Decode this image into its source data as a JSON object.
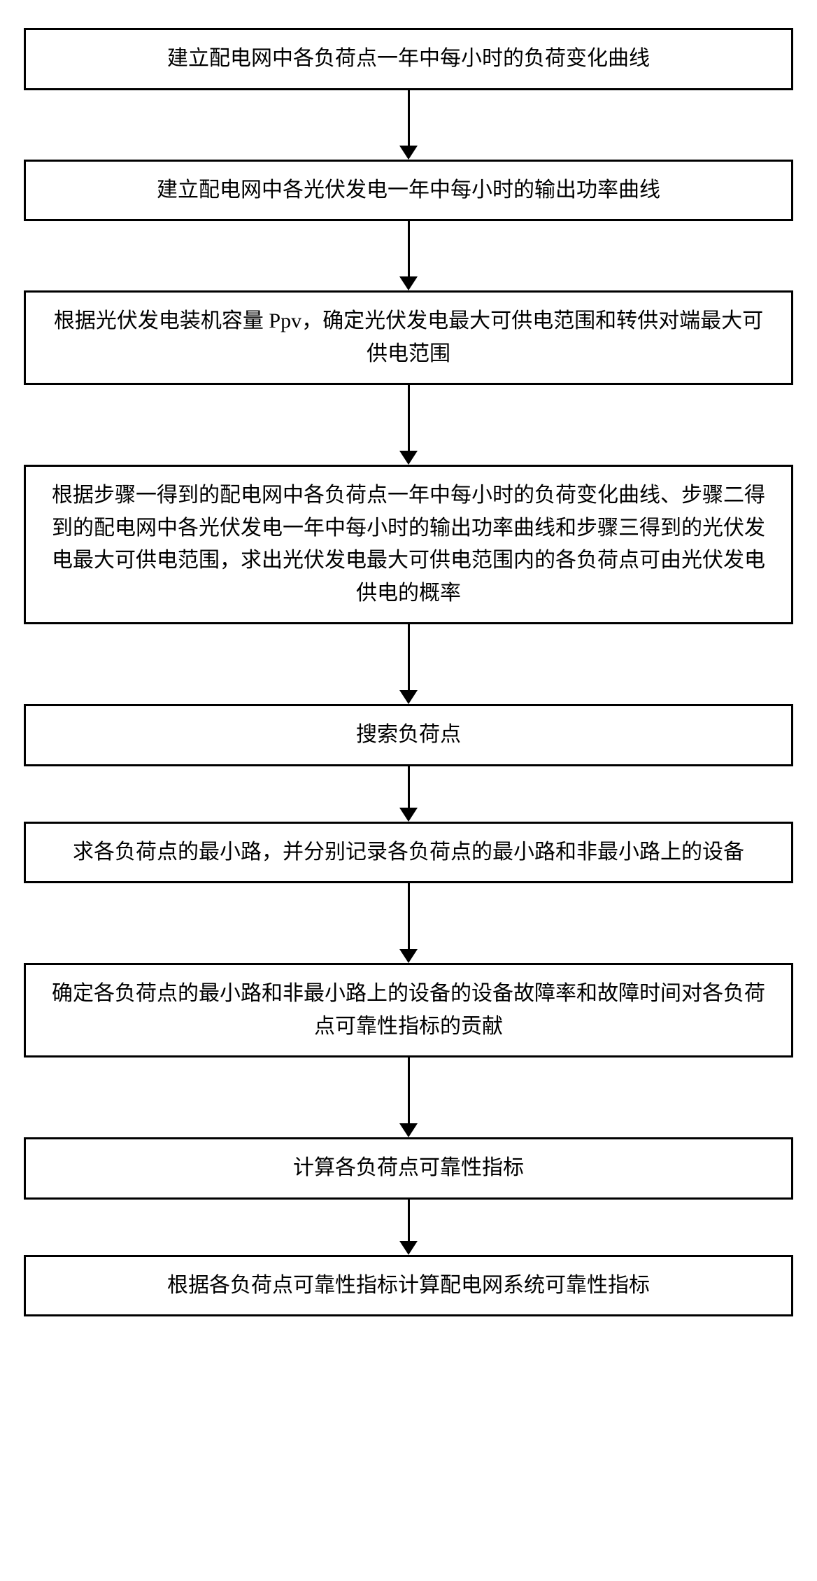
{
  "flowchart": {
    "type": "flowchart",
    "direction": "vertical",
    "box_border_color": "#000000",
    "box_border_width": 3,
    "box_background": "#ffffff",
    "text_color": "#000000",
    "font_family": "SimSun",
    "arrow_color": "#000000",
    "arrow_line_width": 3,
    "arrow_head_width": 26,
    "arrow_head_height": 20,
    "steps": [
      {
        "text": "建立配电网中各负荷点一年中每小时的负荷变化曲线",
        "fontsize": 30,
        "arrow_shaft_after": 80
      },
      {
        "text": "建立配电网中各光伏发电一年中每小时的输出功率曲线",
        "fontsize": 30,
        "arrow_shaft_after": 80
      },
      {
        "text": "根据光伏发电装机容量 Ppv，确定光伏发电最大可供电范围和转供对端最大可供电范围",
        "fontsize": 30,
        "arrow_shaft_after": 95
      },
      {
        "text": "根据步骤一得到的配电网中各负荷点一年中每小时的负荷变化曲线、步骤二得到的配电网中各光伏发电一年中每小时的输出功率曲线和步骤三得到的光伏发电最大可供电范围，求出光伏发电最大可供电范围内的各负荷点可由光伏发电供电的概率",
        "fontsize": 30,
        "arrow_shaft_after": 95
      },
      {
        "text": "搜索负荷点",
        "fontsize": 30,
        "arrow_shaft_after": 60
      },
      {
        "text": "求各负荷点的最小路，并分别记录各负荷点的最小路和非最小路上的设备",
        "fontsize": 30,
        "arrow_shaft_after": 95
      },
      {
        "text": "确定各负荷点的最小路和非最小路上的设备的设备故障率和故障时间对各负荷点可靠性指标的贡献",
        "fontsize": 30,
        "arrow_shaft_after": 95
      },
      {
        "text": "计算各负荷点可靠性指标",
        "fontsize": 30,
        "arrow_shaft_after": 60
      },
      {
        "text": "根据各负荷点可靠性指标计算配电网系统可靠性指标",
        "fontsize": 30,
        "arrow_shaft_after": 0
      }
    ]
  }
}
